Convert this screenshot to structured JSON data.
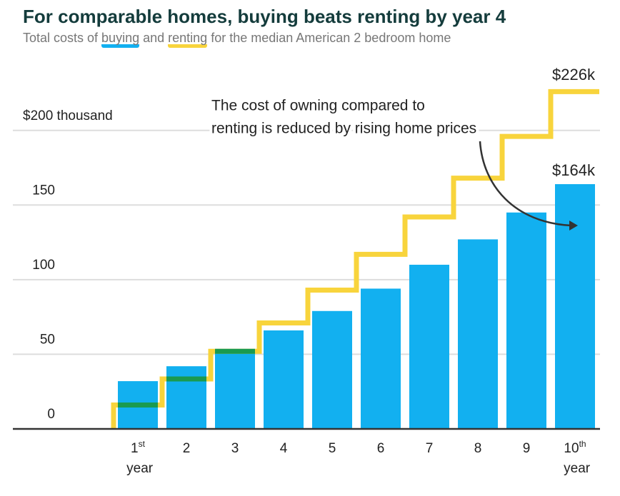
{
  "chart_data": {
    "type": "bar",
    "title": "For comparable homes, buying beats renting by year 4",
    "subtitle": [
      "Total costs of",
      "and",
      "for the median American 2 bedroom home"
    ],
    "annotation": [
      "The cost of owning compared to",
      "renting is reduced by rising home prices"
    ],
    "categories": [
      "1st year",
      "2",
      "3",
      "4",
      "5",
      "6",
      "7",
      "8",
      "9",
      "10th year"
    ],
    "series": [
      {
        "name": "buying",
        "color": "#12b0f0",
        "values": [
          32,
          42,
          53,
          66,
          79,
          94,
          110,
          127,
          145,
          164
        ],
        "value_labels": [
          null,
          null,
          null,
          null,
          null,
          null,
          null,
          null,
          null,
          "$164k"
        ]
      },
      {
        "name": "renting",
        "type": "step",
        "color": "#f8d43c",
        "values": [
          16,
          33.5,
          52,
          71,
          93,
          117,
          142,
          168,
          196,
          226
        ],
        "value_labels": [
          null,
          null,
          null,
          null,
          null,
          null,
          null,
          null,
          null,
          "$226k"
        ]
      }
    ],
    "overlap_color": "#1a9a50",
    "ylim": [
      0,
      230
    ],
    "yticks": [
      0,
      50,
      100,
      150,
      {
        "value": 200,
        "label": "$200 thousand"
      }
    ],
    "grid": true
  }
}
